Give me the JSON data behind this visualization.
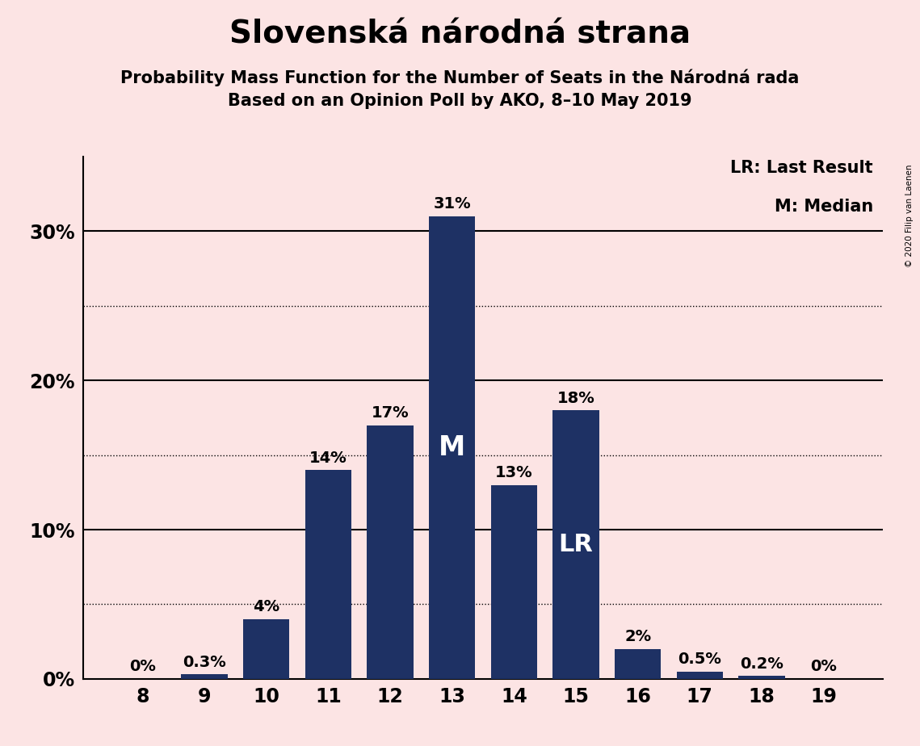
{
  "title": "Slovenská národná strana",
  "subtitle1": "Probability Mass Function for the Number of Seats in the Národná rada",
  "subtitle2": "Based on an Opinion Poll by AKO, 8–10 May 2019",
  "copyright": "© 2020 Filip van Laenen",
  "categories": [
    8,
    9,
    10,
    11,
    12,
    13,
    14,
    15,
    16,
    17,
    18,
    19
  ],
  "values": [
    0.0,
    0.3,
    4.0,
    14.0,
    17.0,
    31.0,
    13.0,
    18.0,
    2.0,
    0.5,
    0.2,
    0.0
  ],
  "labels": [
    "0%",
    "0.3%",
    "4%",
    "14%",
    "17%",
    "31%",
    "13%",
    "18%",
    "2%",
    "0.5%",
    "0.2%",
    "0%"
  ],
  "bar_color": "#1e3164",
  "background_color": "#fce4e4",
  "median_bar": 13,
  "lr_bar": 15,
  "ylim": [
    0,
    35
  ],
  "major_yticks": [
    0,
    10,
    20,
    30
  ],
  "major_ytick_labels": [
    "0%",
    "10%",
    "20%",
    "30%"
  ],
  "dotted_yticks": [
    5,
    15,
    25
  ],
  "solid_yticks": [
    10,
    20,
    30
  ],
  "title_fontsize": 28,
  "subtitle_fontsize": 15,
  "label_fontsize": 14,
  "tick_fontsize": 17,
  "legend_fontsize": 15,
  "bar_width": 0.75
}
